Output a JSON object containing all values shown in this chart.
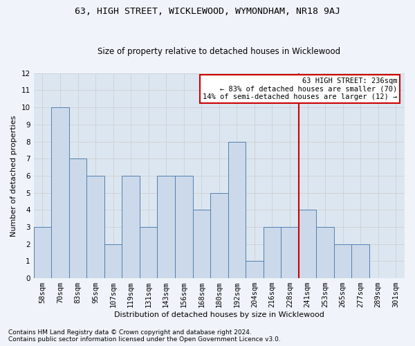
{
  "title": "63, HIGH STREET, WICKLEWOOD, WYMONDHAM, NR18 9AJ",
  "subtitle": "Size of property relative to detached houses in Wicklewood",
  "xlabel": "Distribution of detached houses by size in Wicklewood",
  "ylabel": "Number of detached properties",
  "footnote1": "Contains HM Land Registry data © Crown copyright and database right 2024.",
  "footnote2": "Contains public sector information licensed under the Open Government Licence v3.0.",
  "categories": [
    "58sqm",
    "70sqm",
    "83sqm",
    "95sqm",
    "107sqm",
    "119sqm",
    "131sqm",
    "143sqm",
    "156sqm",
    "168sqm",
    "180sqm",
    "192sqm",
    "204sqm",
    "216sqm",
    "228sqm",
    "241sqm",
    "253sqm",
    "265sqm",
    "277sqm",
    "289sqm",
    "301sqm"
  ],
  "values": [
    3,
    10,
    7,
    6,
    2,
    6,
    3,
    6,
    6,
    4,
    5,
    8,
    1,
    3,
    3,
    4,
    3,
    2,
    2,
    0,
    0
  ],
  "highlight_index": 15,
  "red_line_x": 14.5,
  "bar_color": "#ccd9ea",
  "bar_edge_color": "#5080b0",
  "annotation_box_edge_color": "#cc0000",
  "annotation_text": "63 HIGH STREET: 236sqm\n← 83% of detached houses are smaller (70)\n14% of semi-detached houses are larger (12) →",
  "annotation_fontsize": 7.5,
  "ylim": [
    0,
    12
  ],
  "yticks": [
    0,
    1,
    2,
    3,
    4,
    5,
    6,
    7,
    8,
    9,
    10,
    11,
    12
  ],
  "grid_color": "#cccccc",
  "bg_color": "#f0f4fa",
  "plot_bg_color": "#dce6f0",
  "title_fontsize": 9.5,
  "subtitle_fontsize": 8.5,
  "ylabel_fontsize": 8,
  "xlabel_fontsize": 8,
  "tick_fontsize": 7.5
}
